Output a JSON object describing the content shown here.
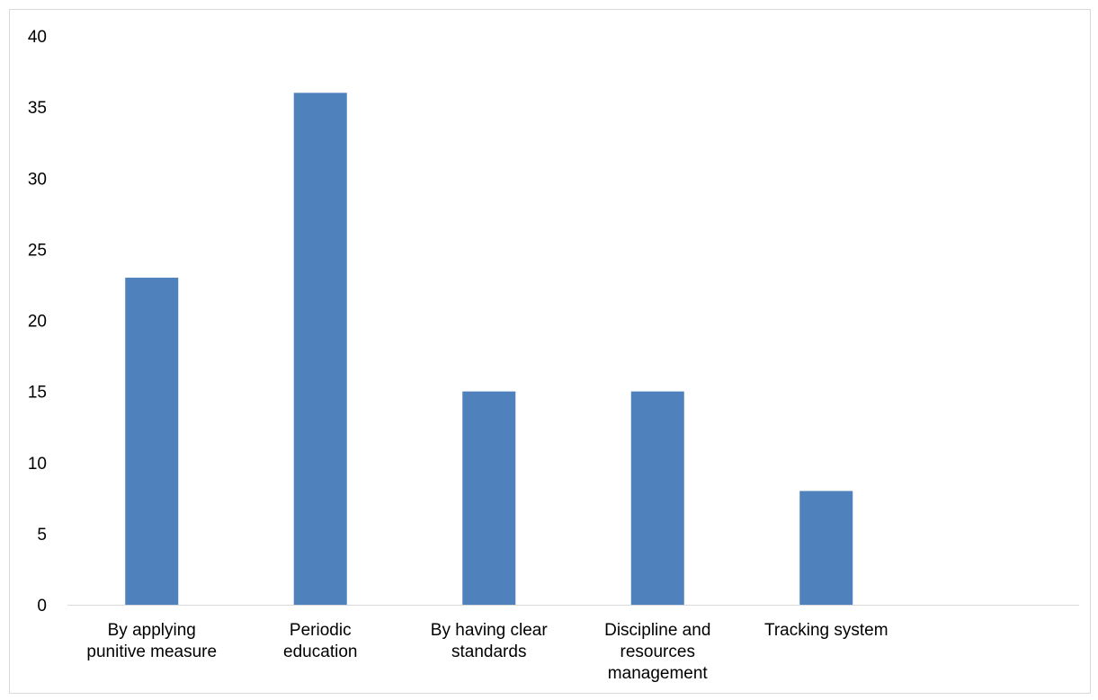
{
  "chart_data": {
    "type": "bar",
    "title": "",
    "xlabel": "",
    "ylabel": "",
    "categories": [
      [
        "By applying",
        "punitive measure"
      ],
      [
        "Periodic",
        "education"
      ],
      [
        "By having clear",
        "standards"
      ],
      [
        "Discipline and",
        "resources",
        "management"
      ],
      [
        "Tracking system"
      ],
      []
    ],
    "values": [
      23,
      36,
      15,
      15,
      8,
      null
    ],
    "ylim": [
      0,
      40
    ],
    "yticks": [
      "0",
      "5",
      "10",
      "15",
      "20",
      "25",
      "30",
      "35",
      "40"
    ],
    "grid": false,
    "legend": "none",
    "bar_color": "#4f81bd",
    "axis_color": "#d9d9d9"
  }
}
